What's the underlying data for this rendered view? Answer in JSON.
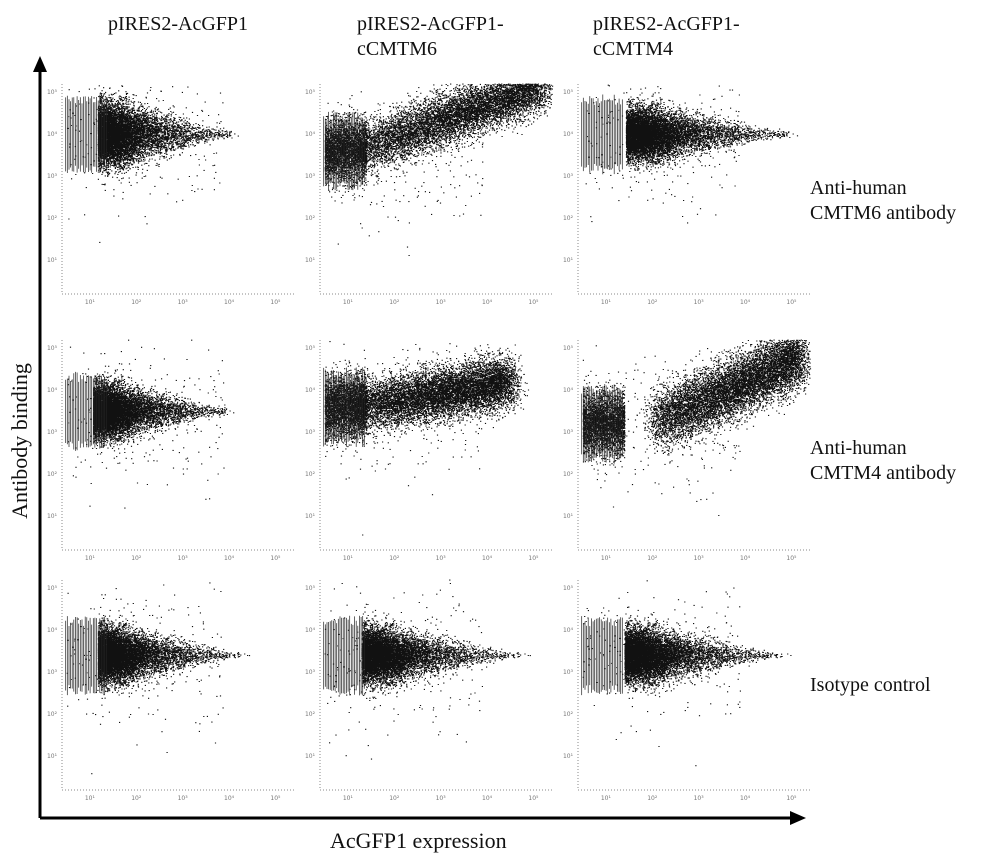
{
  "figure": {
    "x_axis_title": "AcGFP1 expression",
    "y_axis_title": "Antibody binding"
  },
  "chart_data": {
    "type": "scatter",
    "columns": [
      "pIRES2-AcGFP1",
      "pIRES2-AcGFP1-\ncCMTM6",
      "pIRES2-AcGFP1-\ncCMTM4"
    ],
    "rows": [
      "Anti-human\nCMTM6 antibody",
      "Anti-human\nCMTM4 antibody",
      "Isotype control"
    ],
    "x_axis": {
      "scale": "log",
      "range_decades": [
        0,
        5
      ],
      "tick_labels": [
        "10¹",
        "10²",
        "10³",
        "10⁴",
        "10⁵"
      ]
    },
    "y_axis": {
      "scale": "log",
      "range_decades": [
        0,
        5
      ],
      "tick_labels": [
        "10⁵",
        "10⁴",
        "10³",
        "10²",
        "10¹"
      ]
    },
    "panels": [
      {
        "row": 0,
        "col": 0,
        "pattern": "blob",
        "center_log": [
          1.4,
          3.8
        ],
        "spread_log": [
          0.9,
          0.35
        ],
        "max_x_log": 3.7
      },
      {
        "row": 0,
        "col": 1,
        "pattern": "diagonal",
        "start_log": [
          0.8,
          3.4
        ],
        "end_log": [
          4.8,
          5.0
        ],
        "spread_log": 0.3
      },
      {
        "row": 0,
        "col": 2,
        "pattern": "blob",
        "center_log": [
          1.8,
          3.8
        ],
        "spread_log": [
          1.1,
          0.3
        ],
        "max_x_log": 4.6
      },
      {
        "row": 1,
        "col": 0,
        "pattern": "blob",
        "center_log": [
          1.3,
          3.3
        ],
        "spread_log": [
          0.9,
          0.3
        ],
        "max_x_log": 3.6
      },
      {
        "row": 1,
        "col": 1,
        "pattern": "diagonal",
        "start_log": [
          0.8,
          3.4
        ],
        "end_log": [
          4.1,
          4.0
        ],
        "spread_log": 0.3
      },
      {
        "row": 1,
        "col": 2,
        "pattern": "diagonal",
        "start_log": [
          1.6,
          3.0
        ],
        "end_log": [
          4.8,
          4.6
        ],
        "spread_log": 0.35
      },
      {
        "row": 2,
        "col": 0,
        "pattern": "blob",
        "center_log": [
          1.4,
          3.2
        ],
        "spread_log": [
          0.9,
          0.3
        ],
        "max_x_log": 3.9
      },
      {
        "row": 2,
        "col": 1,
        "pattern": "blob",
        "center_log": [
          1.6,
          3.2
        ],
        "spread_log": [
          1.0,
          0.3
        ],
        "max_x_log": 4.4
      },
      {
        "row": 2,
        "col": 2,
        "pattern": "blob",
        "center_log": [
          1.7,
          3.2
        ],
        "spread_log": [
          1.0,
          0.3
        ],
        "max_x_log": 4.4
      }
    ]
  }
}
